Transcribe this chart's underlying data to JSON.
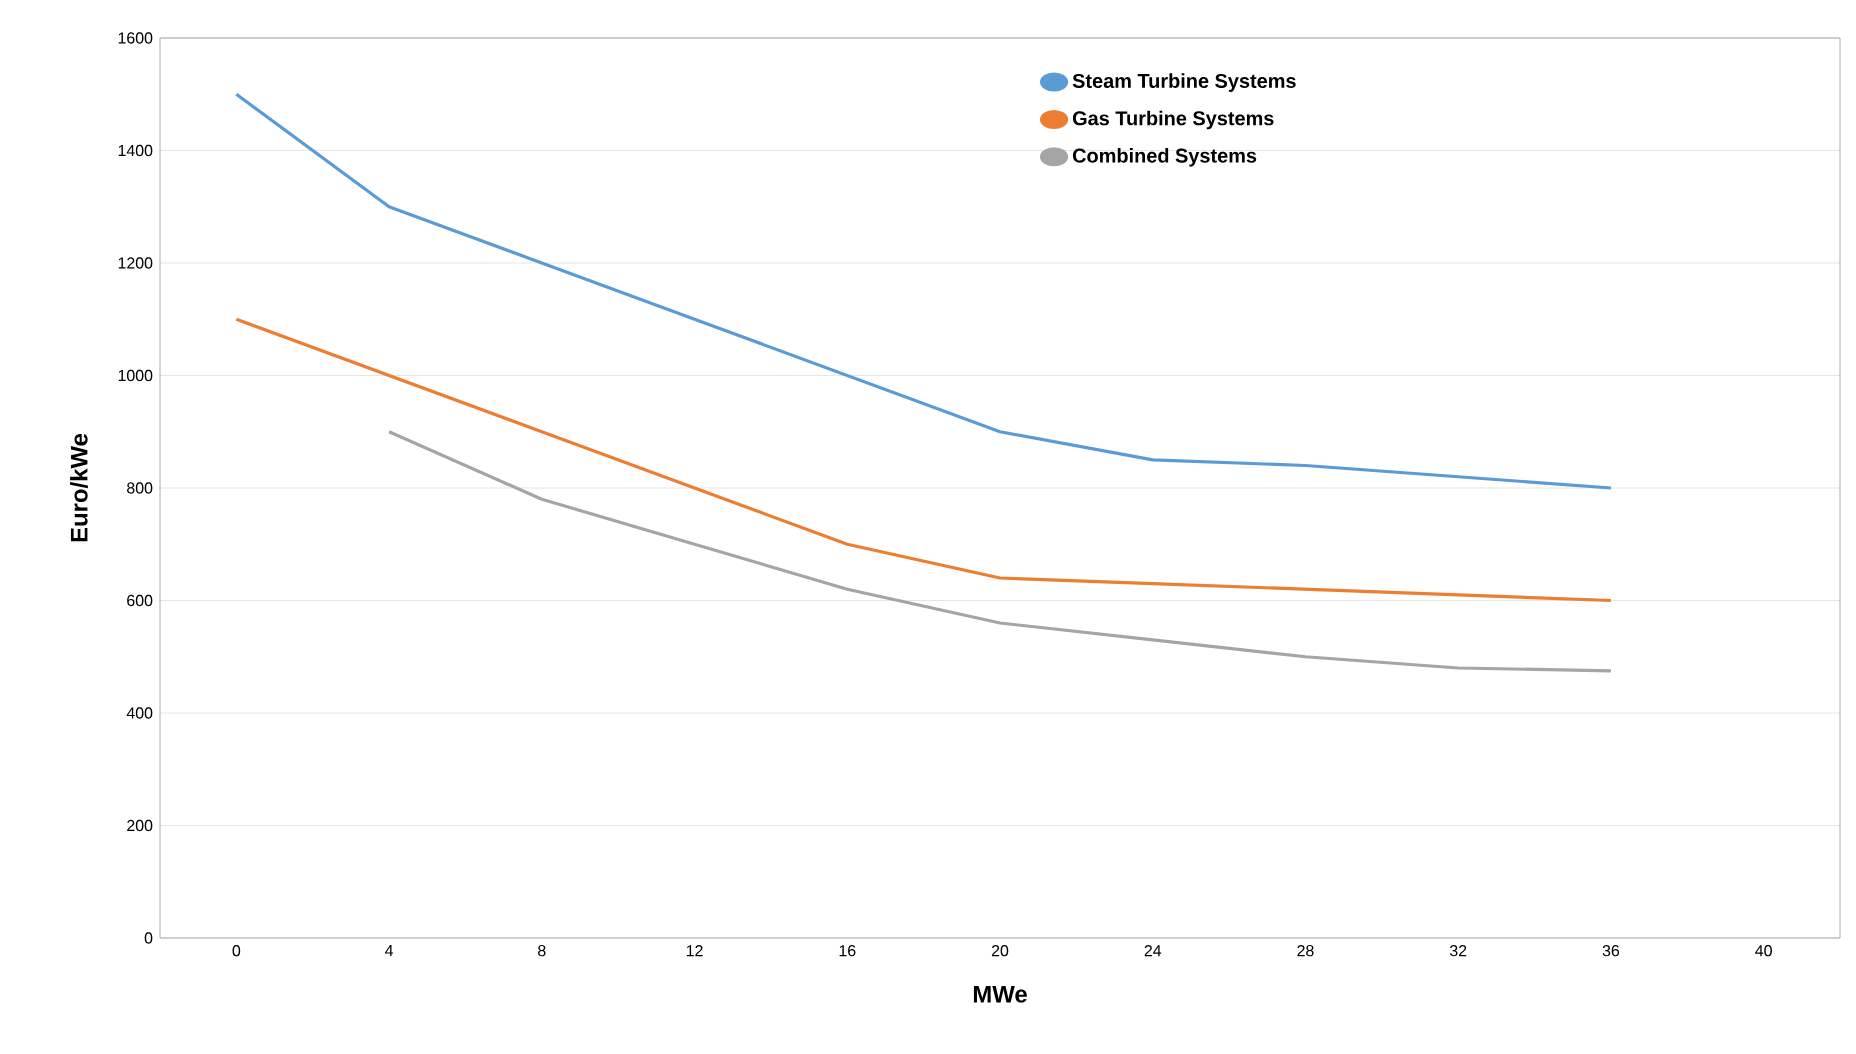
{
  "chart_data": {
    "type": "line",
    "xlabel": "MWe",
    "ylabel": "Euro/kWe",
    "categories": [
      "0",
      "4",
      "8",
      "12",
      "16",
      "20",
      "24",
      "28",
      "32",
      "36",
      "40"
    ],
    "series": [
      {
        "name": "Steam Turbine Systems",
        "color": "#5b9bd5",
        "values": [
          1500,
          1300,
          1200,
          1100,
          1000,
          900,
          850,
          840,
          820,
          800,
          null
        ]
      },
      {
        "name": "Gas Turbine Systems",
        "color": "#ed7d31",
        "values": [
          1100,
          1000,
          900,
          800,
          700,
          640,
          630,
          620,
          610,
          600,
          null
        ]
      },
      {
        "name": "Combined Systems",
        "color": "#a5a5a5",
        "values": [
          null,
          900,
          780,
          700,
          620,
          560,
          530,
          500,
          480,
          475,
          null
        ]
      }
    ],
    "ylim": [
      0,
      1600
    ],
    "yticks": [
      0,
      200,
      400,
      600,
      800,
      1000,
      1200,
      1400,
      1600
    ],
    "grid": "y",
    "legend": "top right",
    "marker": "none",
    "line_style": "solid"
  }
}
